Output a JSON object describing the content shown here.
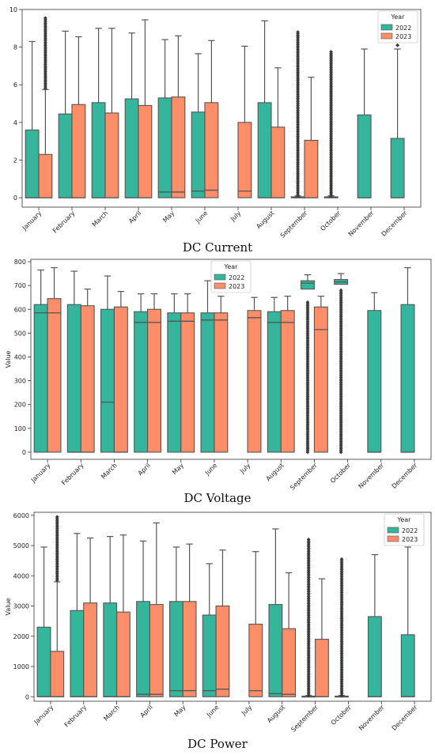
{
  "colors": {
    "y2022": "#35b59b",
    "y2023": "#fd8e6a",
    "frame": "#555555",
    "line": "#555555"
  },
  "chart_data": [
    {
      "type": "box",
      "caption": "DC Current",
      "ylabel": "",
      "ylim": [
        -0.5,
        10
      ],
      "yticks": [
        0,
        2,
        4,
        6,
        8,
        10
      ],
      "legend": {
        "title": "Year",
        "placement": "top-right",
        "entries": [
          "2022",
          "2023"
        ]
      },
      "categories": [
        "January",
        "February",
        "March",
        "April",
        "May",
        "June",
        "July",
        "August",
        "September",
        "October",
        "November",
        "December"
      ],
      "series": [
        {
          "name": "2022",
          "boxes": [
            {
              "cat": "January",
              "q1": 0,
              "median": 0,
              "q3": 3.6,
              "whisker_high": 8.3
            },
            {
              "cat": "February",
              "q1": 0,
              "median": 0,
              "q3": 4.45,
              "whisker_high": 8.85
            },
            {
              "cat": "March",
              "q1": 0,
              "median": 0,
              "q3": 5.05,
              "whisker_high": 9.0
            },
            {
              "cat": "April",
              "q1": 0,
              "median": 0,
              "q3": 5.25,
              "whisker_high": 8.75
            },
            {
              "cat": "May",
              "q1": 0,
              "median": 0.3,
              "q3": 5.3,
              "whisker_high": 8.4
            },
            {
              "cat": "June",
              "q1": 0,
              "median": 0.35,
              "q3": 4.55,
              "whisker_high": 7.65
            },
            {
              "cat": "August",
              "q1": 0,
              "median": 0,
              "q3": 5.05,
              "whisker_high": 9.4
            },
            {
              "cat": "September",
              "q1": 0,
              "median": 0,
              "q3": 0.05,
              "whisker_high": 0.1,
              "outlier_range": [
                0.1,
                8.8
              ]
            },
            {
              "cat": "October",
              "q1": 0,
              "median": 0,
              "q3": 0.05,
              "whisker_high": 0.1,
              "outlier_range": [
                0.1,
                7.75
              ]
            },
            {
              "cat": "November",
              "q1": 0,
              "median": 0,
              "q3": 4.4,
              "whisker_high": 7.9
            },
            {
              "cat": "December",
              "q1": 0,
              "median": 0,
              "q3": 3.15,
              "whisker_high": 7.9,
              "outlier_range": [
                8.1,
                8.1
              ]
            }
          ]
        },
        {
          "name": "2023",
          "boxes": [
            {
              "cat": "January",
              "q1": 0,
              "median": 0,
              "q3": 2.3,
              "whisker_high": 5.75,
              "outlier_range": [
                5.8,
                9.55
              ]
            },
            {
              "cat": "February",
              "q1": 0,
              "median": 0,
              "q3": 4.95,
              "whisker_high": 8.55
            },
            {
              "cat": "March",
              "q1": 0,
              "median": 0,
              "q3": 4.5,
              "whisker_high": 9.0
            },
            {
              "cat": "April",
              "q1": 0,
              "median": 0,
              "q3": 4.9,
              "whisker_high": 9.45
            },
            {
              "cat": "May",
              "q1": 0,
              "median": 0.3,
              "q3": 5.35,
              "whisker_high": 8.6
            },
            {
              "cat": "June",
              "q1": 0,
              "median": 0.4,
              "q3": 5.05,
              "whisker_high": 8.35
            },
            {
              "cat": "July",
              "q1": 0,
              "median": 0.35,
              "q3": 4.0,
              "whisker_high": 8.05
            },
            {
              "cat": "August",
              "q1": 0,
              "median": 0,
              "q3": 3.75,
              "whisker_high": 6.9
            },
            {
              "cat": "September",
              "q1": 0,
              "median": 0,
              "q3": 3.05,
              "whisker_high": 6.4
            }
          ]
        }
      ]
    },
    {
      "type": "box",
      "caption": "DC Voltage",
      "ylabel": "Value",
      "ylim": [
        -30,
        810
      ],
      "yticks": [
        0,
        100,
        200,
        300,
        400,
        500,
        600,
        700,
        800
      ],
      "legend": {
        "title": "Year",
        "placement": "top-center",
        "entries": [
          "2022",
          "2023"
        ]
      },
      "categories": [
        "January",
        "February",
        "March",
        "April",
        "May",
        "June",
        "July",
        "August",
        "September",
        "October",
        "November",
        "December"
      ],
      "series": [
        {
          "name": "2022",
          "boxes": [
            {
              "cat": "January",
              "q1": 0,
              "median": 585,
              "q3": 620,
              "whisker_high": 765
            },
            {
              "cat": "February",
              "q1": 0,
              "median": 0,
              "q3": 620,
              "whisker_high": 760
            },
            {
              "cat": "March",
              "q1": 0,
              "median": 210,
              "q3": 600,
              "whisker_high": 740
            },
            {
              "cat": "April",
              "q1": 0,
              "median": 545,
              "q3": 590,
              "whisker_high": 665
            },
            {
              "cat": "May",
              "q1": 0,
              "median": 550,
              "q3": 585,
              "whisker_high": 665
            },
            {
              "cat": "June",
              "q1": 0,
              "median": 555,
              "q3": 585,
              "whisker_high": 720
            },
            {
              "cat": "August",
              "q1": 0,
              "median": 545,
              "q3": 590,
              "whisker_high": 650
            },
            {
              "cat": "September",
              "q1": 685,
              "median": 710,
              "q3": 720,
              "whisker_high": 745,
              "outlier_range": [
                0,
                630
              ]
            },
            {
              "cat": "October",
              "q1": 705,
              "median": 715,
              "q3": 725,
              "whisker_high": 750,
              "outlier_range": [
                0,
                680
              ]
            },
            {
              "cat": "November",
              "q1": 0,
              "median": 0,
              "q3": 595,
              "whisker_high": 670
            },
            {
              "cat": "December",
              "q1": 0,
              "median": 0,
              "q3": 620,
              "whisker_high": 775
            }
          ]
        },
        {
          "name": "2023",
          "boxes": [
            {
              "cat": "January",
              "q1": 0,
              "median": 585,
              "q3": 645,
              "whisker_high": 775
            },
            {
              "cat": "February",
              "q1": 0,
              "median": 0,
              "q3": 615,
              "whisker_high": 685
            },
            {
              "cat": "March",
              "q1": 0,
              "median": 0,
              "q3": 610,
              "whisker_high": 675
            },
            {
              "cat": "April",
              "q1": 0,
              "median": 545,
              "q3": 600,
              "whisker_high": 665
            },
            {
              "cat": "May",
              "q1": 0,
              "median": 550,
              "q3": 585,
              "whisker_high": 665
            },
            {
              "cat": "June",
              "q1": 0,
              "median": 555,
              "q3": 585,
              "whisker_high": 655
            },
            {
              "cat": "July",
              "q1": 0,
              "median": 565,
              "q3": 595,
              "whisker_high": 650
            },
            {
              "cat": "August",
              "q1": 0,
              "median": 545,
              "q3": 595,
              "whisker_high": 655
            },
            {
              "cat": "September",
              "q1": 0,
              "median": 515,
              "q3": 610,
              "whisker_high": 655
            }
          ]
        }
      ]
    },
    {
      "type": "box",
      "caption": "DC Power",
      "ylabel": "Value",
      "ylim": [
        -150,
        6100
      ],
      "yticks": [
        0,
        1000,
        2000,
        3000,
        4000,
        5000,
        6000
      ],
      "legend": {
        "title": "Year",
        "placement": "top-right",
        "entries": [
          "2022",
          "2023"
        ]
      },
      "categories": [
        "January",
        "February",
        "March",
        "April",
        "May",
        "June",
        "July",
        "August",
        "September",
        "October",
        "November",
        "December"
      ],
      "series": [
        {
          "name": "2022",
          "boxes": [
            {
              "cat": "January",
              "q1": 0,
              "median": 0,
              "q3": 2300,
              "whisker_high": 4950
            },
            {
              "cat": "February",
              "q1": 0,
              "median": 0,
              "q3": 2850,
              "whisker_high": 5400
            },
            {
              "cat": "March",
              "q1": 0,
              "median": 0,
              "q3": 3100,
              "whisker_high": 5300
            },
            {
              "cat": "April",
              "q1": 0,
              "median": 80,
              "q3": 3150,
              "whisker_high": 5150
            },
            {
              "cat": "May",
              "q1": 0,
              "median": 200,
              "q3": 3150,
              "whisker_high": 4950
            },
            {
              "cat": "June",
              "q1": 0,
              "median": 200,
              "q3": 2700,
              "whisker_high": 4400
            },
            {
              "cat": "August",
              "q1": 0,
              "median": 100,
              "q3": 3050,
              "whisker_high": 5550
            },
            {
              "cat": "September",
              "q1": 0,
              "median": 0,
              "q3": 20,
              "whisker_high": 40,
              "outlier_range": [
                40,
                5200
              ]
            },
            {
              "cat": "October",
              "q1": 0,
              "median": 0,
              "q3": 20,
              "whisker_high": 40,
              "outlier_range": [
                40,
                4550
              ]
            },
            {
              "cat": "November",
              "q1": 0,
              "median": 0,
              "q3": 2650,
              "whisker_high": 4700
            },
            {
              "cat": "December",
              "q1": 0,
              "median": 0,
              "q3": 2050,
              "whisker_high": 4950
            }
          ]
        },
        {
          "name": "2023",
          "boxes": [
            {
              "cat": "January",
              "q1": 0,
              "median": 0,
              "q3": 1500,
              "whisker_high": 3800,
              "outlier_range": [
                3850,
                5950
              ]
            },
            {
              "cat": "February",
              "q1": 0,
              "median": 0,
              "q3": 3100,
              "whisker_high": 5250
            },
            {
              "cat": "March",
              "q1": 0,
              "median": 0,
              "q3": 2800,
              "whisker_high": 5350
            },
            {
              "cat": "April",
              "q1": 0,
              "median": 80,
              "q3": 3050,
              "whisker_high": 5750
            },
            {
              "cat": "May",
              "q1": 0,
              "median": 200,
              "q3": 3150,
              "whisker_high": 5050
            },
            {
              "cat": "June",
              "q1": 0,
              "median": 250,
              "q3": 3000,
              "whisker_high": 4850
            },
            {
              "cat": "July",
              "q1": 0,
              "median": 200,
              "q3": 2400,
              "whisker_high": 4800
            },
            {
              "cat": "August",
              "q1": 0,
              "median": 80,
              "q3": 2250,
              "whisker_high": 4100
            },
            {
              "cat": "September",
              "q1": 0,
              "median": 0,
              "q3": 1900,
              "whisker_high": 3900
            }
          ]
        }
      ]
    }
  ]
}
